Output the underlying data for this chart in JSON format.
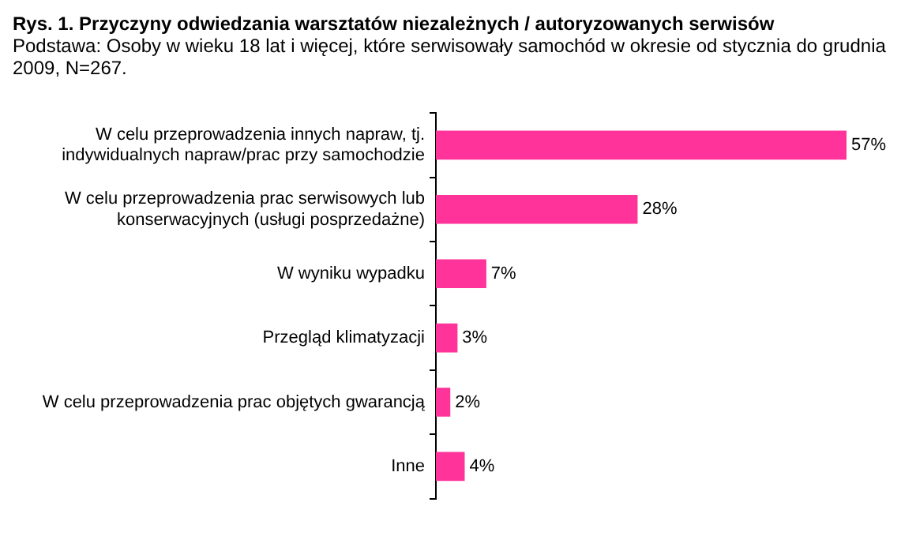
{
  "chart_data": {
    "type": "bar",
    "orientation": "horizontal",
    "title": "Rys. 1. Przyczyny odwiedzania warsztatów niezależnych / autoryzowanych serwisów",
    "subtitle": "Podstawa: Osoby w wieku 18 lat i więcej, które serwisowały samochód w okresie od stycznia do grudnia 2009, N=267.",
    "categories": [
      "W celu przeprowadzenia innych napraw, tj. indywidualnych napraw/prac przy samochodzie",
      "W celu przeprowadzenia prac serwisowych lub konserwacyjnych (usługi posprzedażne)",
      "W wyniku wypadku",
      "Przegląd klimatyzacji",
      "W celu przeprowadzenia prac objętych gwarancją",
      "Inne"
    ],
    "values": [
      57,
      28,
      7,
      3,
      2,
      4
    ],
    "value_labels": [
      "57%",
      "28%",
      "7%",
      "3%",
      "2%",
      "4%"
    ],
    "color": "#ff3399",
    "legend": false,
    "tick_labels": "y"
  }
}
